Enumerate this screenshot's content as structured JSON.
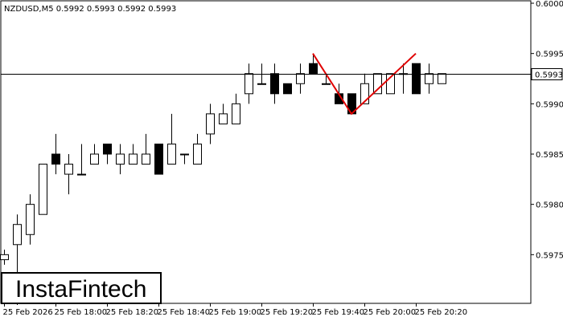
{
  "symbol_header": "NZDUSD,M5  0.5992 0.5993 0.5992 0.5993",
  "watermark": "InstaFintech",
  "current_price_label": "0.5993",
  "colors": {
    "background": "#ffffff",
    "candle_stroke": "#000000",
    "bull_fill": "#ffffff",
    "bear_fill": "#000000",
    "pattern_line": "#e00000",
    "grid_text": "#000000"
  },
  "chart_data": {
    "type": "candlestick",
    "instrument": "NZDUSD",
    "timeframe": "M5",
    "ylim": [
      0.597,
      0.6
    ],
    "y_ticks": [
      "0.6000",
      "0.5995",
      "0.5990",
      "0.5985",
      "0.5980",
      "0.5975"
    ],
    "y_tick_values": [
      0.6,
      0.5995,
      0.599,
      0.5985,
      0.598,
      0.5975
    ],
    "x_tick_labels": [
      "25 Feb 2026",
      "25 Feb 18:00",
      "25 Feb 18:20",
      "25 Feb 18:40",
      "25 Feb 19:00",
      "25 Feb 19:20",
      "25 Feb 19:40",
      "25 Feb 20:00",
      "25 Feb 20:20"
    ],
    "x_tick_index": [
      0,
      4,
      8,
      12,
      16,
      20,
      24,
      28,
      32
    ],
    "current_price": 0.5993,
    "candles": [
      {
        "o": 0.59745,
        "h": 0.59755,
        "l": 0.5974,
        "c": 0.5975
      },
      {
        "o": 0.5976,
        "h": 0.5979,
        "l": 0.597,
        "c": 0.5978
      },
      {
        "o": 0.5977,
        "h": 0.5981,
        "l": 0.5976,
        "c": 0.598
      },
      {
        "o": 0.5979,
        "h": 0.5984,
        "l": 0.5979,
        "c": 0.5984
      },
      {
        "o": 0.5985,
        "h": 0.5987,
        "l": 0.5983,
        "c": 0.5984
      },
      {
        "o": 0.5983,
        "h": 0.5985,
        "l": 0.5981,
        "c": 0.5984
      },
      {
        "o": 0.5983,
        "h": 0.5986,
        "l": 0.5983,
        "c": 0.5983
      },
      {
        "o": 0.5984,
        "h": 0.5986,
        "l": 0.5984,
        "c": 0.5985
      },
      {
        "o": 0.5986,
        "h": 0.5986,
        "l": 0.5984,
        "c": 0.5985
      },
      {
        "o": 0.5984,
        "h": 0.5986,
        "l": 0.5983,
        "c": 0.5985
      },
      {
        "o": 0.5984,
        "h": 0.5986,
        "l": 0.5984,
        "c": 0.5985
      },
      {
        "o": 0.5984,
        "h": 0.5987,
        "l": 0.5984,
        "c": 0.5985
      },
      {
        "o": 0.5986,
        "h": 0.5986,
        "l": 0.5983,
        "c": 0.5983
      },
      {
        "o": 0.5984,
        "h": 0.5989,
        "l": 0.5984,
        "c": 0.5986
      },
      {
        "o": 0.5985,
        "h": 0.5985,
        "l": 0.5984,
        "c": 0.5985
      },
      {
        "o": 0.5984,
        "h": 0.5987,
        "l": 0.5984,
        "c": 0.5986
      },
      {
        "o": 0.5987,
        "h": 0.599,
        "l": 0.5986,
        "c": 0.5989
      },
      {
        "o": 0.5988,
        "h": 0.599,
        "l": 0.5988,
        "c": 0.5989
      },
      {
        "o": 0.5988,
        "h": 0.5991,
        "l": 0.5988,
        "c": 0.599
      },
      {
        "o": 0.5991,
        "h": 0.5994,
        "l": 0.599,
        "c": 0.5993
      },
      {
        "o": 0.5992,
        "h": 0.5994,
        "l": 0.5992,
        "c": 0.5992
      },
      {
        "o": 0.5993,
        "h": 0.5994,
        "l": 0.599,
        "c": 0.5991
      },
      {
        "o": 0.5992,
        "h": 0.5992,
        "l": 0.5991,
        "c": 0.5991
      },
      {
        "o": 0.5992,
        "h": 0.5994,
        "l": 0.5991,
        "c": 0.5993
      },
      {
        "o": 0.5994,
        "h": 0.5995,
        "l": 0.5993,
        "c": 0.5993
      },
      {
        "o": 0.5992,
        "h": 0.5993,
        "l": 0.5992,
        "c": 0.5992
      },
      {
        "o": 0.5991,
        "h": 0.5992,
        "l": 0.599,
        "c": 0.599
      },
      {
        "o": 0.5991,
        "h": 0.5991,
        "l": 0.5989,
        "c": 0.5989
      },
      {
        "o": 0.599,
        "h": 0.5993,
        "l": 0.599,
        "c": 0.5992
      },
      {
        "o": 0.5991,
        "h": 0.5993,
        "l": 0.5991,
        "c": 0.5993
      },
      {
        "o": 0.5991,
        "h": 0.5993,
        "l": 0.5991,
        "c": 0.5993
      },
      {
        "o": 0.5993,
        "h": 0.5994,
        "l": 0.5991,
        "c": 0.5993
      },
      {
        "o": 0.5994,
        "h": 0.5994,
        "l": 0.5991,
        "c": 0.5991
      },
      {
        "o": 0.5992,
        "h": 0.5994,
        "l": 0.5991,
        "c": 0.5993
      },
      {
        "o": 0.5992,
        "h": 0.5993,
        "l": 0.5992,
        "c": 0.5993
      }
    ],
    "pattern": {
      "name": "double top",
      "points": [
        {
          "index": 24,
          "price": 0.5995
        },
        {
          "index": 27,
          "price": 0.5989
        },
        {
          "index": 32,
          "price": 0.5995
        }
      ]
    }
  }
}
